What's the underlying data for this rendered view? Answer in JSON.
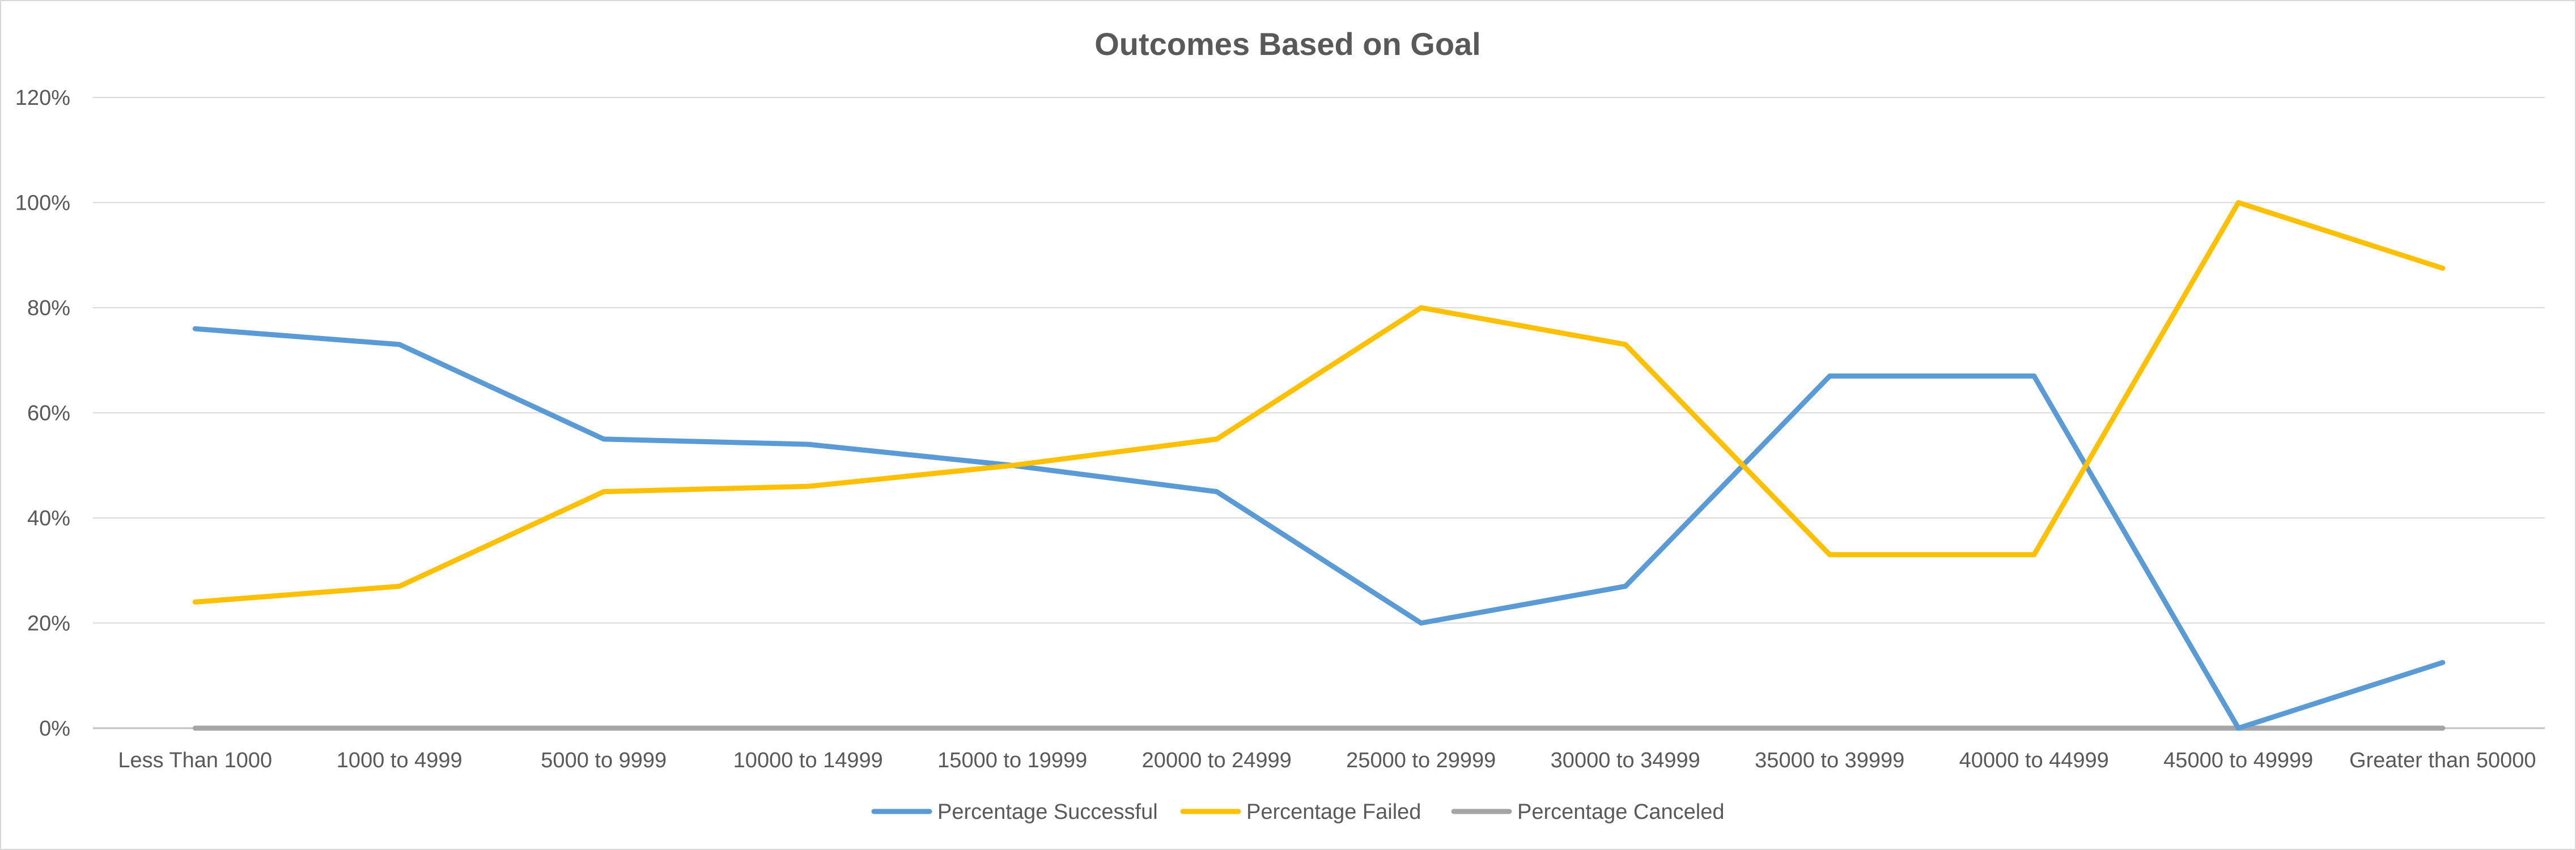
{
  "chart_data": {
    "type": "line",
    "title": "Outcomes Based on Goal",
    "xlabel": "",
    "ylabel": "",
    "categories": [
      "Less Than 1000",
      "1000 to 4999",
      "5000 to 9999",
      "10000 to 14999",
      "15000 to 19999",
      "20000 to 24999",
      "25000 to 29999",
      "30000 to 34999",
      "35000 to 39999",
      "40000 to 44999",
      "45000 to 49999",
      "Greater than 50000"
    ],
    "y_ticks": [
      "0%",
      "20%",
      "40%",
      "60%",
      "80%",
      "100%",
      "120%"
    ],
    "ylim": [
      0,
      1.2
    ],
    "grid": true,
    "legend_position": "bottom",
    "series": [
      {
        "name": "Percentage Successful",
        "color": "#5b9bd5",
        "values": [
          0.76,
          0.73,
          0.55,
          0.54,
          0.5,
          0.45,
          0.2,
          0.27,
          0.67,
          0.67,
          0.0,
          0.125
        ]
      },
      {
        "name": "Percentage Failed",
        "color": "#ffc000",
        "values": [
          0.24,
          0.27,
          0.45,
          0.46,
          0.5,
          0.55,
          0.8,
          0.73,
          0.33,
          0.33,
          1.0,
          0.875
        ]
      },
      {
        "name": "Percentage Canceled",
        "color": "#a5a5a5",
        "values": [
          0,
          0,
          0,
          0,
          0,
          0,
          0,
          0,
          0,
          0,
          0,
          0
        ]
      }
    ]
  }
}
